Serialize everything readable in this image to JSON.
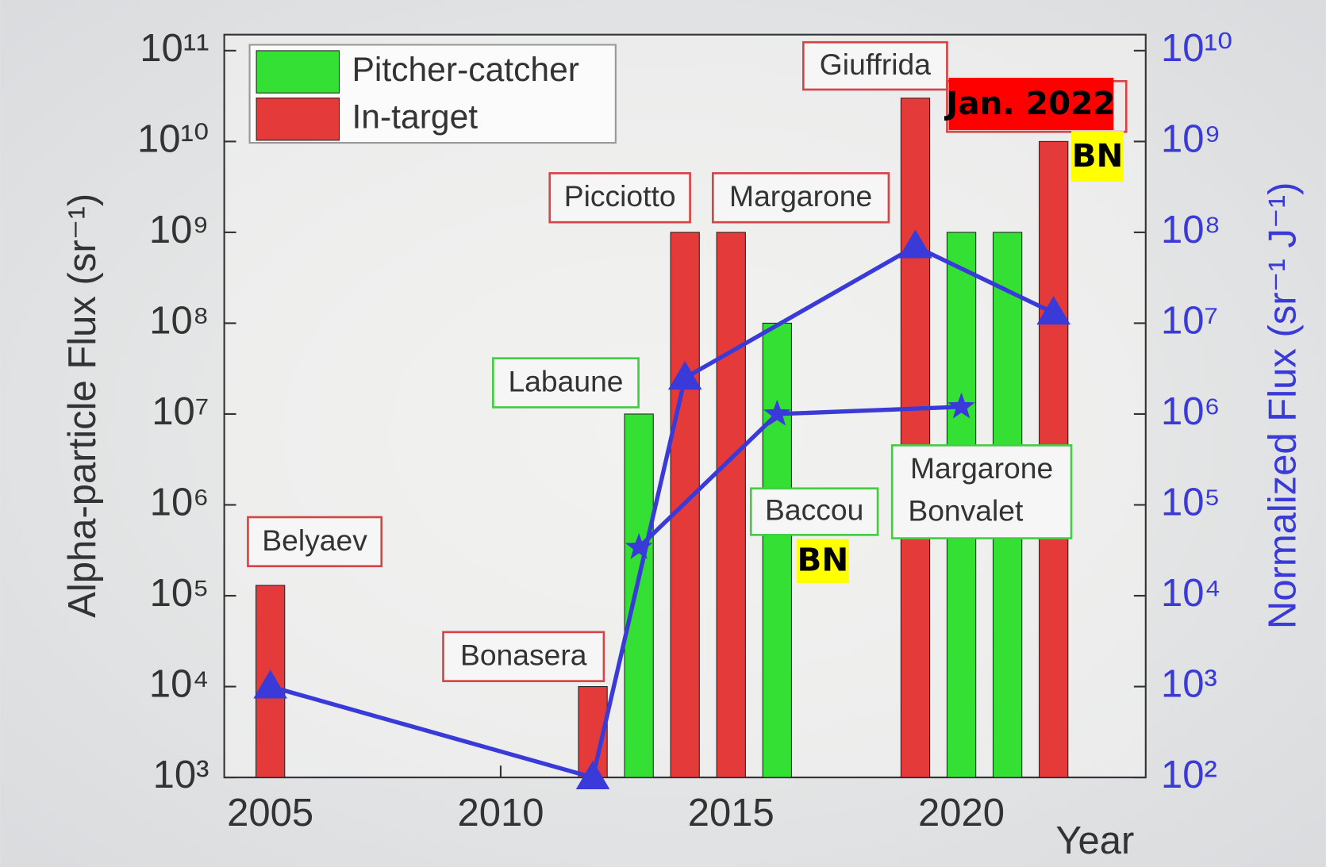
{
  "chart_data": {
    "type": "bar",
    "x_label": "Year",
    "y_label": "Alpha-particle Flux (sr⁻¹)",
    "y2_label": "Normalized Flux (sr⁻¹ J⁻¹)",
    "xlim": [
      2004,
      2024
    ],
    "xticks": [
      2005,
      2010,
      2015,
      2020
    ],
    "ylim": [
      1000,
      150000000000
    ],
    "yscale": "log",
    "yticks": [
      {
        "value": 1000,
        "label": "10³"
      },
      {
        "value": 10000,
        "label": "10⁴"
      },
      {
        "value": 100000,
        "label": "10⁵"
      },
      {
        "value": 1000000,
        "label": "10⁶"
      },
      {
        "value": 10000000,
        "label": "10⁷"
      },
      {
        "value": 100000000,
        "label": "10⁸"
      },
      {
        "value": 1000000000,
        "label": "10⁹"
      },
      {
        "value": 10000000000,
        "label": "10¹⁰"
      },
      {
        "value": 100000000000,
        "label": "10¹¹"
      }
    ],
    "y2lim": [
      100,
      15000000000
    ],
    "y2scale": "log",
    "y2ticks": [
      {
        "value": 100,
        "label": "10²"
      },
      {
        "value": 1000,
        "label": "10³"
      },
      {
        "value": 10000,
        "label": "10⁴"
      },
      {
        "value": 100000,
        "label": "10⁵"
      },
      {
        "value": 1000000,
        "label": "10⁶"
      },
      {
        "value": 10000000,
        "label": "10⁷"
      },
      {
        "value": 100000000,
        "label": "10⁸"
      },
      {
        "value": 1000000000,
        "label": "10⁹"
      },
      {
        "value": 10000000000,
        "label": "10¹⁰"
      }
    ],
    "y2_color": "#3a3ad8",
    "legend": "top-left",
    "series": [
      {
        "name": "Pitcher-catcher",
        "type": "bar",
        "color": "#35e035",
        "x": [
          2013,
          2016,
          2020,
          2021
        ],
        "values": [
          10000000,
          100000000,
          1000000000,
          1000000000
        ]
      },
      {
        "name": "In-target",
        "type": "bar",
        "color": "#e53a3a",
        "x": [
          2005,
          2012,
          2014,
          2015,
          2019,
          2022
        ],
        "values": [
          130000,
          10000,
          1000000000,
          1000000000,
          30000000000,
          10000000000
        ]
      },
      {
        "type": "line",
        "marker": "triangle",
        "axis": "y2",
        "color": "#3a3ad8",
        "x": [
          2005,
          2012,
          2014,
          2019,
          2022
        ],
        "values": [
          1000,
          100,
          2500000,
          70000000,
          13000000
        ]
      },
      {
        "type": "line",
        "marker": "star",
        "axis": "y2",
        "color": "#3a3ad8",
        "x": [
          2013,
          2016,
          2020
        ],
        "values": [
          34000,
          1000000,
          1200000
        ]
      }
    ],
    "annotations": [
      "Belyaev",
      "Bonasera",
      "Picciotto",
      "Margarone",
      "Giuffrida",
      "Labaune",
      "Baccou",
      "Margarone",
      "Bonvalet",
      "BN",
      "BN",
      "Jan. 2022"
    ]
  }
}
